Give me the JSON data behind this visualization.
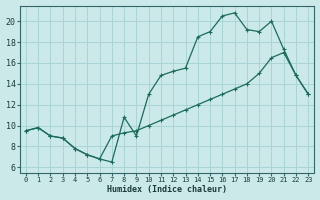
{
  "xlabel": "Humidex (Indice chaleur)",
  "xlim": [
    -0.5,
    23.5
  ],
  "ylim": [
    5.5,
    21.5
  ],
  "xticks": [
    0,
    1,
    2,
    3,
    4,
    5,
    6,
    7,
    8,
    9,
    10,
    11,
    12,
    13,
    14,
    15,
    16,
    17,
    18,
    19,
    20,
    21,
    22,
    23
  ],
  "yticks": [
    6,
    8,
    10,
    12,
    14,
    16,
    18,
    20
  ],
  "background_color": "#cce9e9",
  "grid_color": "#aad4d4",
  "line_color": "#1a6b5a",
  "upper_line": {
    "x": [
      0,
      1,
      2,
      3,
      4,
      5,
      6,
      7,
      8,
      9,
      10,
      11,
      12,
      13,
      14,
      15,
      16,
      17,
      18,
      19,
      20,
      21,
      22,
      23
    ],
    "y": [
      9.5,
      9.8,
      9.0,
      8.8,
      7.8,
      7.2,
      6.8,
      6.5,
      10.8,
      9.0,
      13.0,
      14.8,
      15.2,
      15.5,
      18.5,
      19.0,
      20.5,
      20.8,
      19.2,
      19.0,
      20.0,
      17.3,
      14.8,
      13.0
    ]
  },
  "lower_line": {
    "x": [
      0,
      1,
      2,
      3,
      4,
      5,
      6,
      7,
      8,
      9,
      10,
      11,
      12,
      13,
      14,
      15,
      16,
      17,
      18,
      19,
      20,
      21,
      22,
      23
    ],
    "y": [
      9.5,
      9.8,
      9.0,
      8.8,
      7.8,
      7.2,
      6.8,
      9.0,
      9.3,
      9.5,
      10.0,
      10.5,
      11.0,
      11.5,
      12.0,
      12.5,
      13.0,
      13.5,
      14.0,
      15.0,
      16.5,
      17.0,
      14.8,
      13.0
    ]
  }
}
